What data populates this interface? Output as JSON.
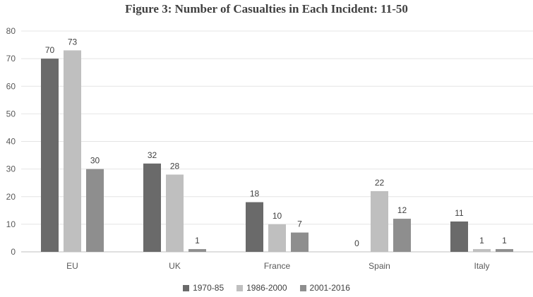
{
  "chart_data": {
    "type": "bar",
    "title": "Figure 3: Number of Casualties in Each Incident:  11-50",
    "categories": [
      "EU",
      "UK",
      "France",
      "Spain",
      "Italy"
    ],
    "series": [
      {
        "name": "1970-85",
        "color": "#6a6a6a",
        "values": [
          70,
          32,
          18,
          0,
          11
        ]
      },
      {
        "name": "1986-2000",
        "color": "#bfbfbf",
        "values": [
          73,
          28,
          10,
          22,
          1
        ]
      },
      {
        "name": "2001-2016",
        "color": "#8e8e8e",
        "values": [
          30,
          1,
          7,
          12,
          1
        ]
      }
    ],
    "ylim": [
      0,
      80
    ],
    "yticks": [
      0,
      10,
      20,
      30,
      40,
      50,
      60,
      70,
      80
    ],
    "grid": true,
    "legend": "bottom",
    "data_labels": true
  }
}
